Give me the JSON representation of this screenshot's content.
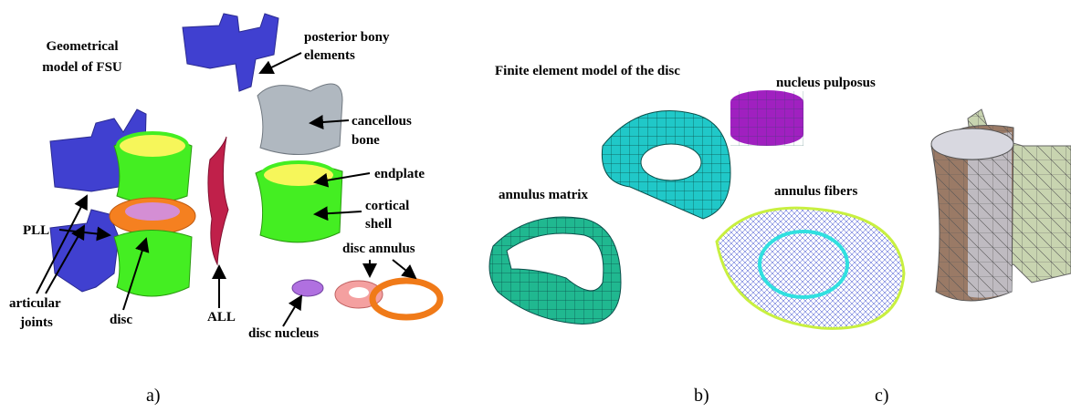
{
  "panels": [
    {
      "caption": "a)",
      "title": [
        "Geometrical",
        "model of FSU"
      ],
      "labels": {
        "posterior_bony_elements": [
          "posterior bony",
          "elements"
        ],
        "cancellous_bone": [
          "cancellous",
          "bone"
        ],
        "endplate": [
          "endplate"
        ],
        "cortical_shell": [
          "cortical",
          "shell"
        ],
        "disc_annulus": [
          "disc annulus"
        ],
        "pll": [
          "PLL"
        ],
        "articular_joints": [
          "articular",
          "joints"
        ],
        "disc": [
          "disc"
        ],
        "all": [
          "ALL"
        ],
        "disc_nucleus": [
          "disc nucleus"
        ]
      }
    },
    {
      "caption": "b)",
      "title": [
        "Finite element model of the disc"
      ],
      "labels": {
        "nucleus_pulposus": [
          "nucleus pulposus"
        ],
        "annulus_matrix": [
          "annulus matrix"
        ],
        "annulus_fibers": [
          "annulus fibers"
        ]
      }
    },
    {
      "caption": "c)"
    }
  ]
}
